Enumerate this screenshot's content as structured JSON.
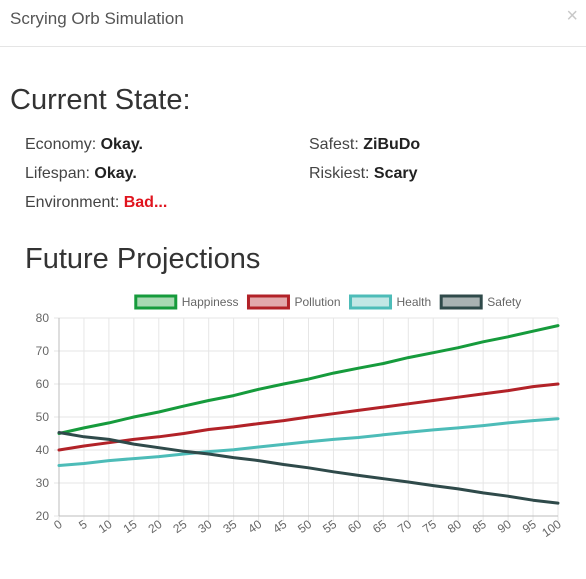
{
  "header": {
    "title": "Scrying Orb Simulation",
    "close_glyph": "×"
  },
  "current_state": {
    "title": "Current State:",
    "economy": {
      "label": "Economy:",
      "value": "Okay."
    },
    "lifespan": {
      "label": "Lifespan:",
      "value": "Okay."
    },
    "environment": {
      "label": "Environment:",
      "value": "Bad..."
    },
    "safest": {
      "label": "Safest:",
      "value": "ZiBuDo"
    },
    "riskiest": {
      "label": "Riskiest:",
      "value": "Scary"
    }
  },
  "projections": {
    "title": "Future Projections"
  },
  "colors": {
    "bad_value": "#e0141e",
    "happiness": "#169b3c",
    "pollution": "#b22228",
    "health": "#4dbcb8",
    "safety": "#2f4a4a"
  },
  "chart_data": {
    "type": "line",
    "x": [
      0,
      5,
      10,
      15,
      20,
      25,
      30,
      35,
      40,
      45,
      50,
      55,
      60,
      65,
      70,
      75,
      80,
      85,
      90,
      95,
      100
    ],
    "ylim": [
      20,
      80
    ],
    "yticks": [
      20,
      30,
      40,
      50,
      60,
      70,
      80
    ],
    "grid": true,
    "legend": "top",
    "series": [
      {
        "name": "Happiness",
        "color": "#169b3c",
        "fill": "#a9d9b3",
        "values": [
          45,
          46.7,
          48.2,
          50,
          51.5,
          53.3,
          55,
          56.5,
          58.4,
          60,
          61.5,
          63.3,
          64.8,
          66.2,
          68,
          69.5,
          71,
          72.8,
          74.3,
          76,
          77.7
        ]
      },
      {
        "name": "Pollution",
        "color": "#b22228",
        "fill": "#e2a9ac",
        "values": [
          40,
          41.2,
          42.2,
          43.2,
          44,
          45,
          46.2,
          47,
          48,
          48.9,
          50,
          51,
          52,
          53,
          54,
          55,
          56,
          57,
          58,
          59.2,
          60
        ]
      },
      {
        "name": "Health",
        "color": "#4dbcb8",
        "fill": "#c2e7e5",
        "values": [
          35.3,
          35.9,
          36.8,
          37.4,
          38,
          38.8,
          39.5,
          40.1,
          40.9,
          41.7,
          42.5,
          43.2,
          43.8,
          44.6,
          45.4,
          46.1,
          46.7,
          47.4,
          48.2,
          48.9,
          49.5
        ]
      },
      {
        "name": "Safety",
        "color": "#2f4a4a",
        "fill": "#a8b2b2",
        "values": [
          45.3,
          44,
          43.2,
          41.8,
          40.7,
          39.6,
          38.8,
          37.7,
          36.8,
          35.6,
          34.6,
          33.4,
          32.3,
          31.3,
          30.3,
          29.2,
          28.2,
          27,
          26,
          24.8,
          23.9
        ]
      }
    ]
  }
}
